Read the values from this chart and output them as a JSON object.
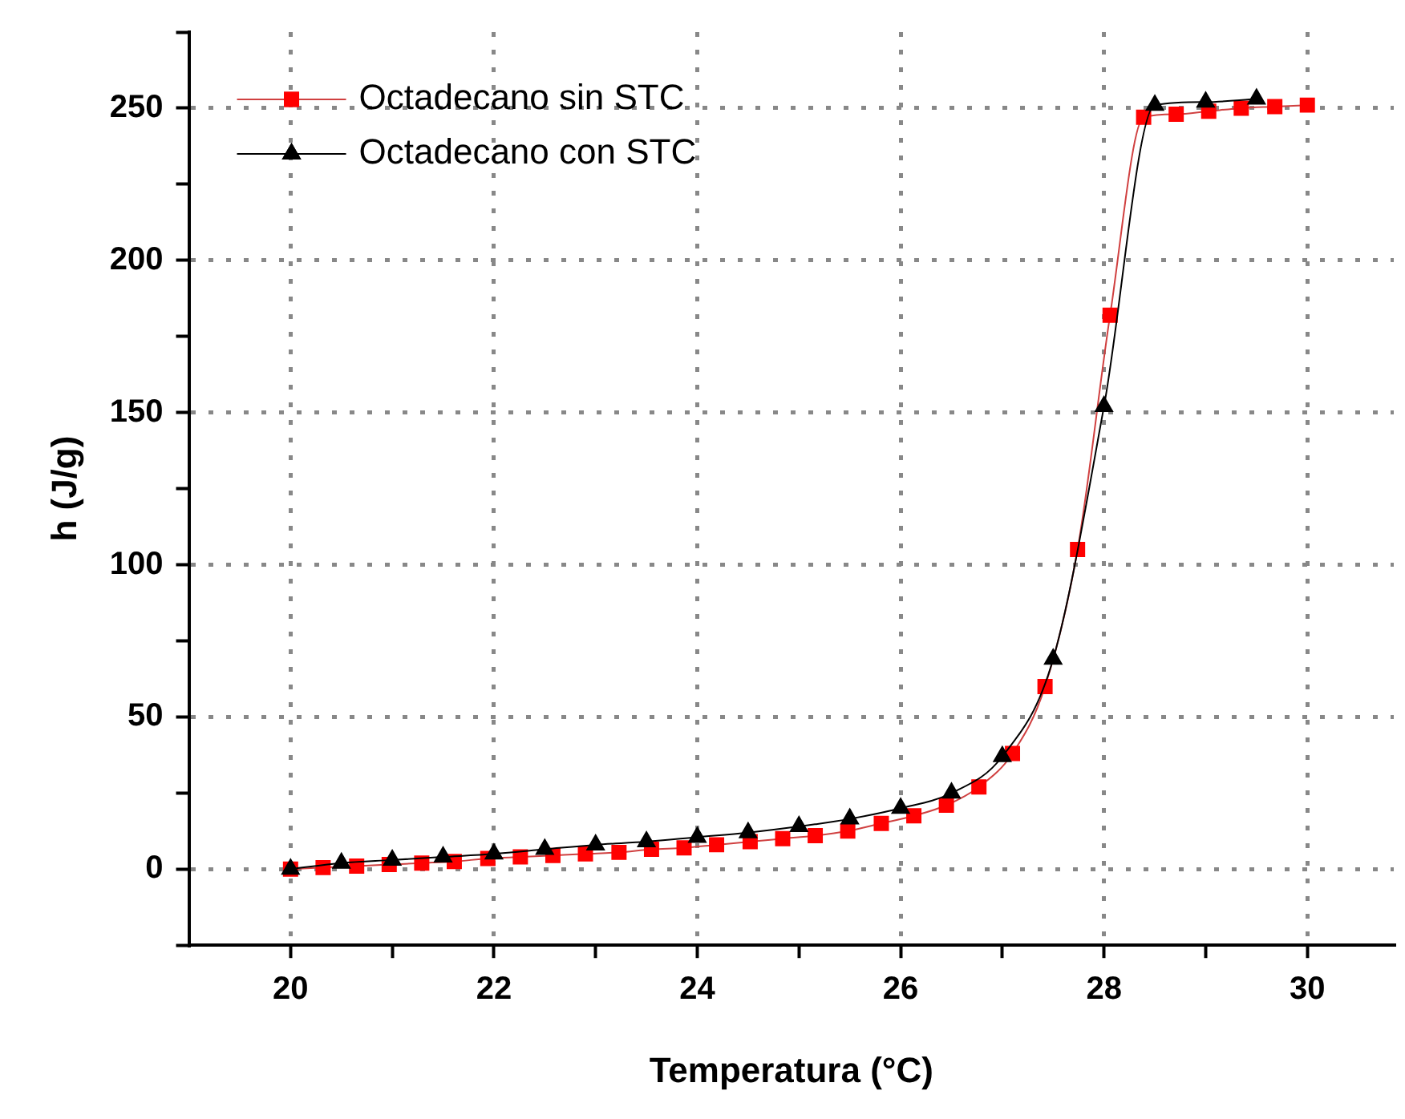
{
  "chart_data": {
    "type": "line",
    "xlabel": "Temperatura (°C)",
    "ylabel": "h (J/g)",
    "xlim": [
      19,
      30.85
    ],
    "xticks": [
      20,
      {
        "value": 21,
        "label": null
      },
      22,
      {
        "value": 23,
        "label": null
      },
      24,
      {
        "value": 25,
        "label": null
      },
      26,
      {
        "value": 27,
        "label": null
      },
      28,
      {
        "value": 29,
        "label": null
      },
      30
    ],
    "ylim": [
      -25,
      275
    ],
    "yticks": [
      {
        "value": -25,
        "label": null
      },
      0,
      {
        "value": 25,
        "label": null
      },
      50,
      {
        "value": 75,
        "label": null
      },
      100,
      {
        "value": 125,
        "label": null
      },
      150,
      {
        "value": 175,
        "label": null
      },
      200,
      {
        "value": 225,
        "label": null
      },
      250,
      {
        "value": 275,
        "label": null
      }
    ],
    "grid": true,
    "legend": "top left",
    "line_style": "solid",
    "series": [
      {
        "name": "Octadecano sin STC",
        "color": "#ff0000",
        "marker": "square",
        "x": [
          20,
          20.32,
          20.65,
          20.97,
          21.29,
          21.61,
          21.94,
          22.26,
          22.58,
          22.9,
          23.23,
          23.55,
          23.87,
          24.19,
          24.52,
          24.84,
          25.16,
          25.48,
          25.81,
          26.13,
          26.45,
          26.77,
          27.1,
          27.42,
          27.74,
          28.06,
          28.39,
          28.71,
          29.03,
          29.35,
          29.68,
          30
        ],
        "values": [
          0,
          0.5,
          1,
          1.5,
          2,
          2.5,
          3.5,
          4,
          4.5,
          5,
          5.5,
          6.5,
          7,
          8,
          9,
          10,
          11,
          12.5,
          15,
          17.5,
          21,
          27,
          38,
          60,
          105,
          182,
          247,
          248,
          249,
          250,
          250.5,
          251
        ]
      },
      {
        "name": "Octadecano con STC",
        "color": "#000000",
        "marker": "triangle",
        "x": [
          20,
          20.5,
          21,
          21.5,
          22,
          22.5,
          23,
          23.5,
          24,
          24.5,
          25,
          25.5,
          26,
          26.5,
          27,
          27.5,
          28,
          28.5,
          29,
          29.5
        ],
        "values": [
          0,
          2,
          3,
          4,
          5,
          6.5,
          8,
          9,
          10.5,
          12,
          14,
          16.5,
          20,
          25,
          37,
          69,
          152,
          251,
          252,
          253
        ]
      }
    ]
  }
}
